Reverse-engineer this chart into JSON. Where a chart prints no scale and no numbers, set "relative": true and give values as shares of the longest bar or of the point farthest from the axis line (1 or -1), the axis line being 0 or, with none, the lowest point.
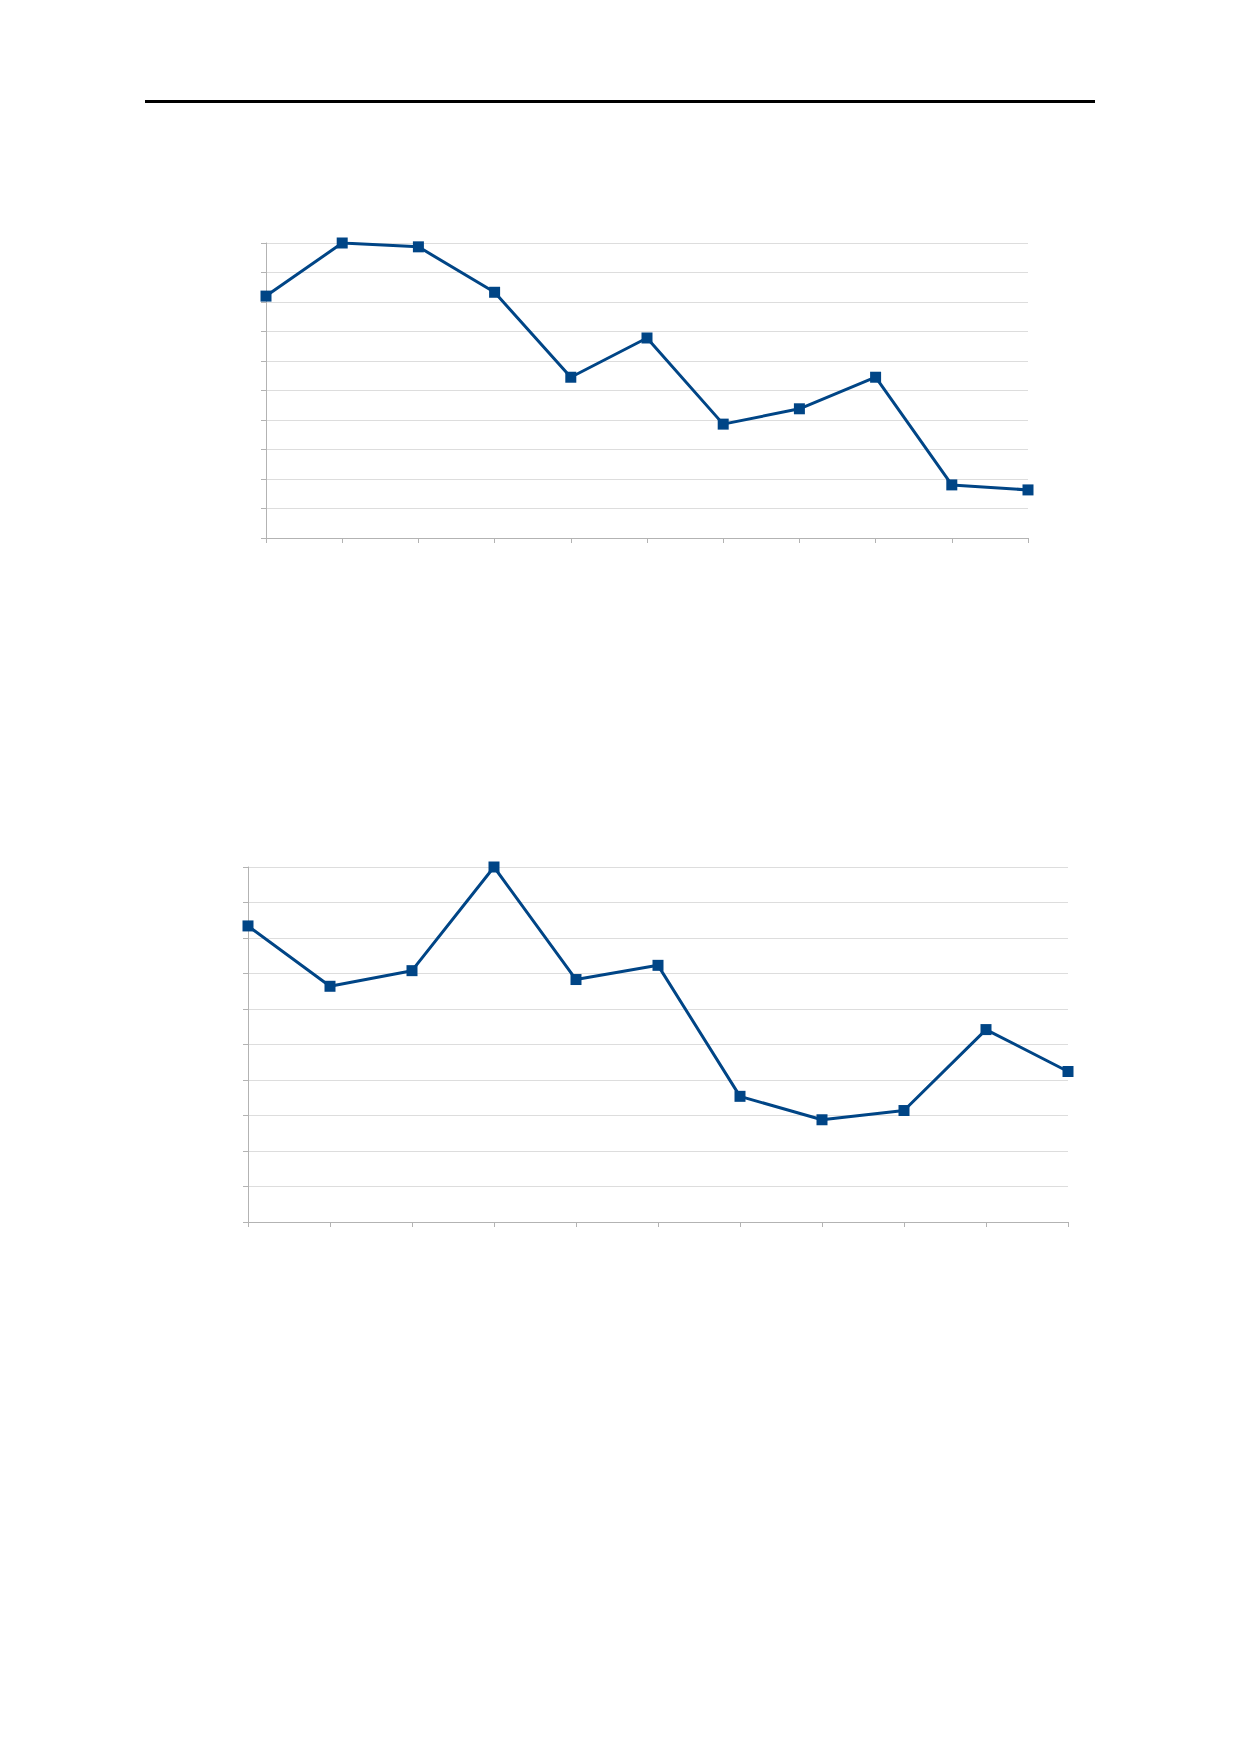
{
  "chart_data": [
    {
      "type": "line",
      "relative": true,
      "categories": [
        null,
        null,
        null,
        null,
        null,
        null,
        null,
        null,
        null,
        null,
        null
      ],
      "series": [
        {
          "color": "#004586",
          "values": [
            0.82,
            1,
            0.987,
            0.833,
            0.545,
            0.678,
            0.386,
            0.438,
            0.545,
            0.18,
            0.163
          ]
        }
      ],
      "marker": "square",
      "grid": "y"
    },
    {
      "type": "line",
      "relative": true,
      "categories": [
        null,
        null,
        null,
        null,
        null,
        null,
        null,
        null,
        null,
        null,
        null
      ],
      "series": [
        {
          "color": "#004586",
          "values": [
            0.834,
            0.664,
            0.708,
            1,
            0.683,
            0.723,
            0.354,
            0.288,
            0.314,
            0.542,
            0.424
          ]
        }
      ],
      "marker": "square",
      "grid": "y"
    }
  ]
}
